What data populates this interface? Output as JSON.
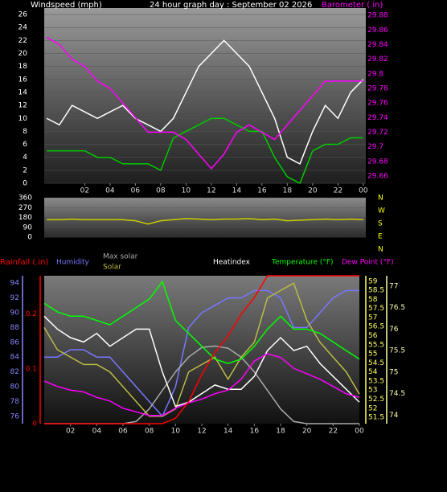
{
  "chart_data": [
    {
      "type": "line",
      "title": "24 hour graph day : September 02 2026",
      "ylabel": "Windspeed (mph)",
      "y2label": "Barometer (.in)",
      "x": [
        -1,
        0,
        1,
        2,
        3,
        4,
        5,
        6,
        7,
        8,
        9,
        10,
        11,
        12,
        13,
        14,
        15,
        16,
        17,
        18,
        19,
        20,
        21,
        22,
        23,
        24
      ],
      "xlim": [
        -1.2,
        24.2
      ],
      "xticks": [
        {
          "value": 2,
          "label": "02"
        },
        {
          "value": 4,
          "label": "04"
        },
        {
          "value": 6,
          "label": "06"
        },
        {
          "value": 8,
          "label": "08"
        },
        10,
        12,
        14,
        16,
        18,
        20,
        22,
        {
          "value": 24,
          "label": "00"
        }
      ],
      "ylim": [
        0,
        27
      ],
      "yticks": [
        0,
        2,
        4,
        6,
        8,
        10,
        12,
        14,
        16,
        18,
        20,
        22,
        24,
        26
      ],
      "y2lim": [
        29.65,
        29.89
      ],
      "y2ticks": [
        29.66,
        29.68,
        29.7,
        29.72,
        29.74,
        29.76,
        29.78,
        29.8,
        29.82,
        29.84,
        29.86,
        29.88
      ],
      "grid": true,
      "series": [
        {
          "color": "#ffffff",
          "values": [
            10,
            9,
            12,
            11,
            10,
            11,
            12,
            10,
            9,
            8,
            10,
            14,
            18,
            20,
            22,
            20,
            18,
            14,
            10,
            4,
            3,
            8,
            12,
            10,
            14,
            16
          ]
        },
        {
          "color": "#00cc00",
          "values": [
            5,
            5,
            5,
            5,
            4,
            4,
            3,
            3,
            3,
            2,
            7,
            8,
            9,
            10,
            10,
            9,
            8,
            8,
            4,
            1,
            0,
            5,
            6,
            6,
            7,
            7
          ]
        },
        {
          "color": "#ff00ff",
          "axis": "y2",
          "values": [
            29.85,
            29.84,
            29.82,
            29.81,
            29.79,
            29.78,
            29.76,
            29.74,
            29.72,
            29.72,
            29.72,
            29.71,
            29.69,
            29.67,
            29.69,
            29.72,
            29.73,
            29.72,
            29.71,
            29.73,
            29.75,
            29.77,
            29.79,
            29.79,
            29.79,
            29.79
          ]
        }
      ]
    },
    {
      "type": "line",
      "x": [
        -1,
        0,
        1,
        2,
        3,
        4,
        5,
        6,
        7,
        8,
        9,
        10,
        11,
        12,
        13,
        14,
        15,
        16,
        17,
        18,
        19,
        20,
        21,
        22,
        23,
        24
      ],
      "xlim": [
        -1.2,
        24.2
      ],
      "ylim": [
        0,
        360
      ],
      "yticks": [
        0,
        90,
        180,
        270,
        360
      ],
      "direction_labels": [
        "N",
        "W",
        "S",
        "E",
        "N"
      ],
      "series": [
        {
          "color": "#cccc00",
          "values": [
            160,
            160,
            165,
            160,
            160,
            160,
            160,
            150,
            120,
            150,
            160,
            170,
            165,
            160,
            165,
            165,
            170,
            160,
            165,
            150,
            155,
            160,
            165,
            160,
            165,
            160
          ]
        }
      ]
    },
    {
      "type": "line",
      "rain_label": "Rainfall (.in)",
      "x": [
        0,
        1,
        2,
        3,
        4,
        5,
        6,
        7,
        8,
        9,
        10,
        11,
        12,
        13,
        14,
        15,
        16,
        17,
        18,
        19,
        20,
        21,
        22,
        23,
        24
      ],
      "xlim": [
        0,
        24
      ],
      "xticks": [
        {
          "value": 2,
          "label": "02"
        },
        {
          "value": 4,
          "label": "04"
        },
        {
          "value": 6,
          "label": "06"
        },
        {
          "value": 8,
          "label": "08"
        },
        10,
        12,
        14,
        16,
        18,
        20,
        22,
        {
          "value": 24,
          "label": "00"
        }
      ],
      "ylim": [
        75,
        95
      ],
      "yticks": [
        76,
        78,
        80,
        82,
        84,
        86,
        88,
        90,
        92,
        94
      ],
      "rain_lim": [
        0,
        0.27
      ],
      "rain_ticks": [
        0,
        0.1,
        0.2
      ],
      "dew_lim": [
        51.15,
        59.3
      ],
      "dew_ticks": [
        51.5,
        52,
        52.5,
        53,
        53.5,
        54,
        54.5,
        55,
        55.5,
        56,
        56.5,
        57,
        57.5,
        58,
        58.5,
        59
      ],
      "y2lim": [
        73.8,
        77.24
      ],
      "y2ticks": [
        74,
        74.5,
        75,
        75.5,
        76,
        76.5,
        77
      ],
      "series": [
        {
          "name": "Humidity",
          "color": "#7777ff",
          "values": [
            84,
            84,
            85,
            85,
            84,
            84,
            82,
            80,
            78,
            76,
            80,
            88,
            90,
            91,
            92,
            92,
            93,
            93,
            92,
            88,
            88,
            90,
            92,
            93,
            93
          ]
        },
        {
          "name": "Max solar",
          "color": "#aaaaaa",
          "values": [
            75,
            75,
            75,
            75,
            75,
            75,
            75,
            75.3,
            77,
            79.5,
            82,
            84,
            85.3,
            85.5,
            85.2,
            84,
            82,
            79.5,
            77,
            75.3,
            75,
            75,
            75,
            75,
            75
          ]
        },
        {
          "name": "Solar",
          "color": "#bbbb44",
          "values": [
            88,
            85,
            84,
            83,
            83,
            82,
            80,
            78,
            76,
            76,
            77,
            82,
            83,
            84,
            81,
            84,
            86,
            92,
            93,
            94,
            89,
            86,
            84,
            82,
            79
          ]
        },
        {
          "name": "Heatindex",
          "color": "#ffffff",
          "axis": "y2",
          "values": [
            76.3,
            76,
            75.8,
            75.7,
            75.9,
            75.6,
            75.8,
            76,
            76,
            75,
            74.2,
            74.3,
            74.5,
            74.7,
            74.6,
            74.6,
            74.9,
            75.5,
            75.8,
            75.5,
            75.6,
            75.2,
            74.9,
            74.6,
            74.3
          ]
        },
        {
          "name": "Temperature (°F)",
          "color": "#00ff00",
          "axis": "y2",
          "values": [
            76.6,
            76.4,
            76.3,
            76.3,
            76.2,
            76.1,
            76.3,
            76.5,
            76.7,
            77.1,
            76.2,
            75.9,
            75.6,
            75.3,
            75.2,
            75.3,
            75.6,
            76,
            76.3,
            76,
            76,
            75.9,
            75.7,
            75.5,
            75.3
          ]
        },
        {
          "name": "Dew Point (°F)",
          "color": "#ff00ff",
          "axis": "dew",
          "values": [
            53.5,
            53.2,
            53,
            52.9,
            52.6,
            52.4,
            52,
            51.8,
            51.6,
            51.6,
            52,
            52.3,
            52.5,
            52.8,
            53,
            53.6,
            54.6,
            55,
            54.8,
            54.2,
            53.9,
            53.6,
            53.2,
            52.8,
            52.6
          ]
        },
        {
          "color": "#ff0000",
          "axis": "rain",
          "values": [
            0,
            0,
            0,
            0,
            0,
            0,
            0,
            0,
            0,
            0,
            0.01,
            0.04,
            0.09,
            0.13,
            0.16,
            0.2,
            0.23,
            0.27,
            0.27,
            0.27,
            0.27,
            0.27,
            0.27,
            0.27,
            0.27
          ]
        }
      ]
    }
  ]
}
